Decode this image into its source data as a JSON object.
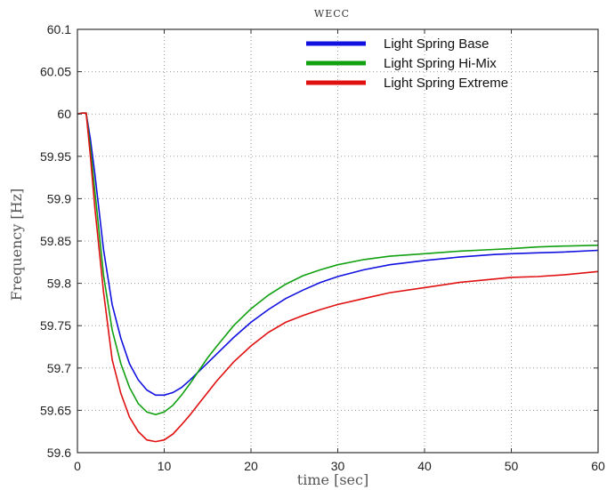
{
  "chart_data": {
    "type": "line",
    "title": "WECC",
    "xlabel": "time [sec]",
    "ylabel": "Frequency [Hz]",
    "xlim": [
      0,
      60
    ],
    "ylim": [
      59.6,
      60.1
    ],
    "xticks": [
      0,
      10,
      20,
      30,
      40,
      50,
      60
    ],
    "xtick_labels": [
      "0",
      "10",
      "20",
      "30",
      "40",
      "50",
      "60"
    ],
    "yticks": [
      59.6,
      59.65,
      59.7,
      59.75,
      59.8,
      59.85,
      59.9,
      59.95,
      60,
      60.05,
      60.1
    ],
    "ytick_labels": [
      "59.6",
      "59.65",
      "59.7",
      "59.75",
      "59.8",
      "59.85",
      "59.9",
      "59.95",
      "60",
      "60.05",
      "60.1"
    ],
    "grid": true,
    "legend_position": "top-right",
    "x": [
      0,
      0.5,
      1,
      1.5,
      2,
      3,
      4,
      5,
      6,
      7,
      8,
      9,
      10,
      11,
      12,
      13,
      14,
      15,
      16,
      18,
      20,
      22,
      24,
      26,
      28,
      30,
      33,
      36,
      40,
      44,
      48,
      50,
      53,
      56,
      60
    ],
    "series": [
      {
        "name": "Light Spring Base",
        "color": "#1010e0",
        "values": [
          60.0,
          60.001,
          60.001,
          59.97,
          59.93,
          59.84,
          59.775,
          59.735,
          59.705,
          59.686,
          59.674,
          59.668,
          59.668,
          59.671,
          59.677,
          59.686,
          59.696,
          59.706,
          59.716,
          59.736,
          59.754,
          59.769,
          59.782,
          59.792,
          59.801,
          59.808,
          59.816,
          59.822,
          59.827,
          59.831,
          59.834,
          59.835,
          59.836,
          59.837,
          59.839
        ]
      },
      {
        "name": "Light Spring Hi-Mix",
        "color": "#10a010",
        "values": [
          60.0,
          60.001,
          60.001,
          59.96,
          59.91,
          59.81,
          59.745,
          59.705,
          59.677,
          59.658,
          59.648,
          59.645,
          59.648,
          59.656,
          59.668,
          59.682,
          59.697,
          59.712,
          59.725,
          59.75,
          59.77,
          59.786,
          59.799,
          59.809,
          59.816,
          59.822,
          59.828,
          59.832,
          59.835,
          59.838,
          59.84,
          59.841,
          59.843,
          59.844,
          59.845
        ]
      },
      {
        "name": "Light Spring Extreme",
        "color": "#e01010",
        "values": [
          60.0,
          60.001,
          60.001,
          59.95,
          59.89,
          59.79,
          59.71,
          59.67,
          59.642,
          59.625,
          59.615,
          59.613,
          59.615,
          59.622,
          59.633,
          59.645,
          59.658,
          59.671,
          59.684,
          59.707,
          59.726,
          59.742,
          59.754,
          59.762,
          59.769,
          59.775,
          59.782,
          59.789,
          59.795,
          59.801,
          59.805,
          59.807,
          59.808,
          59.81,
          59.814
        ]
      }
    ]
  }
}
